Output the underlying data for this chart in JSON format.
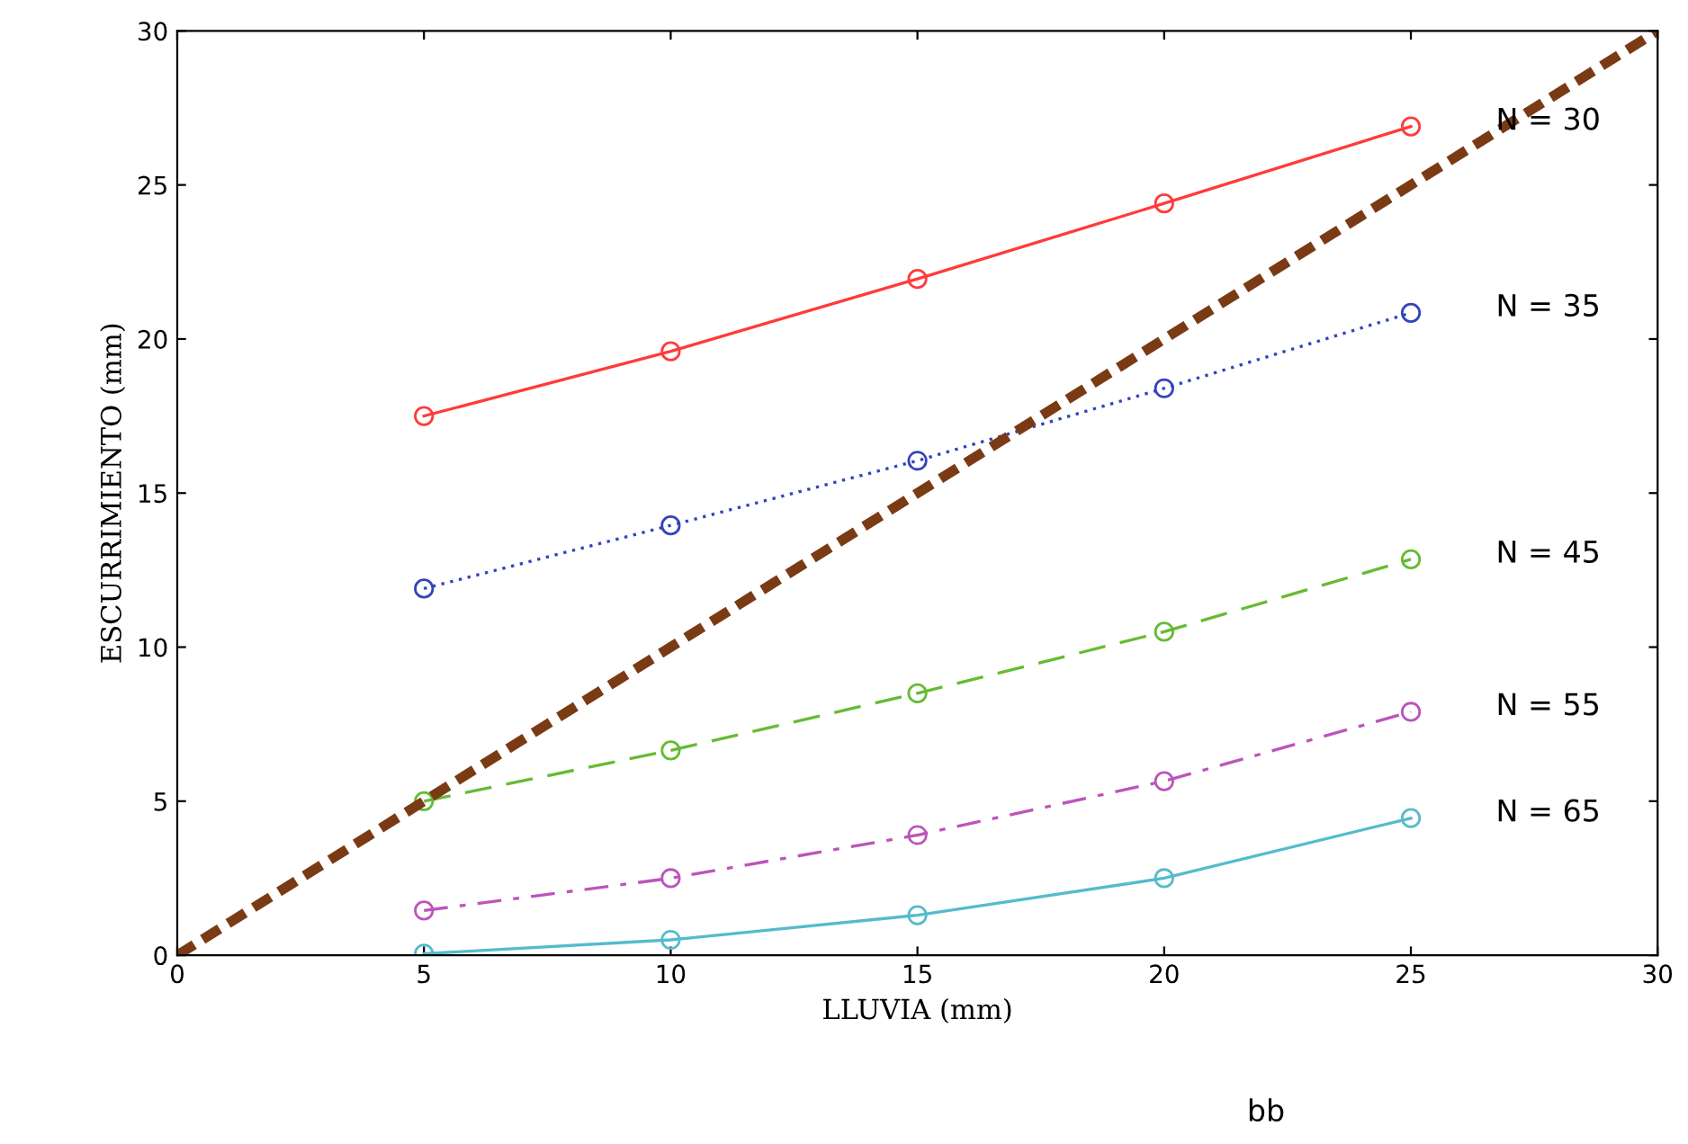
{
  "chart_data": {
    "type": "line",
    "xlabel": "LLUVIA (mm)",
    "ylabel": "ESCURRIMIENTO (mm)",
    "xlim": [
      0,
      30
    ],
    "ylim": [
      0,
      30
    ],
    "xticks": [
      0,
      5,
      10,
      15,
      20,
      25,
      30
    ],
    "yticks": [
      0,
      5,
      10,
      15,
      20,
      25,
      30
    ],
    "grid": false,
    "legend": false,
    "marker": "circle",
    "x": [
      5,
      10,
      15,
      20,
      25
    ],
    "series": [
      {
        "name": "N = 30",
        "color": "#ff3b3b",
        "line_style": "solid",
        "values": [
          17.5,
          19.6,
          21.95,
          24.4,
          26.9
        ]
      },
      {
        "name": "N = 35",
        "color": "#3344bb",
        "line_style": "dotted",
        "values": [
          11.9,
          13.95,
          16.05,
          18.4,
          20.85
        ]
      },
      {
        "name": "N = 45",
        "color": "#66bb33",
        "line_style": "dashed",
        "values": [
          5.0,
          6.65,
          8.5,
          10.5,
          12.85
        ]
      },
      {
        "name": "N = 55",
        "color": "#bb55bb",
        "line_style": "dashdot",
        "values": [
          1.45,
          2.5,
          3.9,
          5.65,
          7.9
        ]
      },
      {
        "name": "N = 65",
        "color": "#55bbcc",
        "line_style": "solid",
        "values": [
          0.05,
          0.5,
          1.3,
          2.5,
          4.45
        ]
      },
      {
        "color": "#7a3b14",
        "line_style": "dashed",
        "marker": "none",
        "x": [
          0,
          30
        ],
        "values": [
          0,
          30
        ]
      }
    ],
    "annotations": [
      "bb"
    ]
  }
}
